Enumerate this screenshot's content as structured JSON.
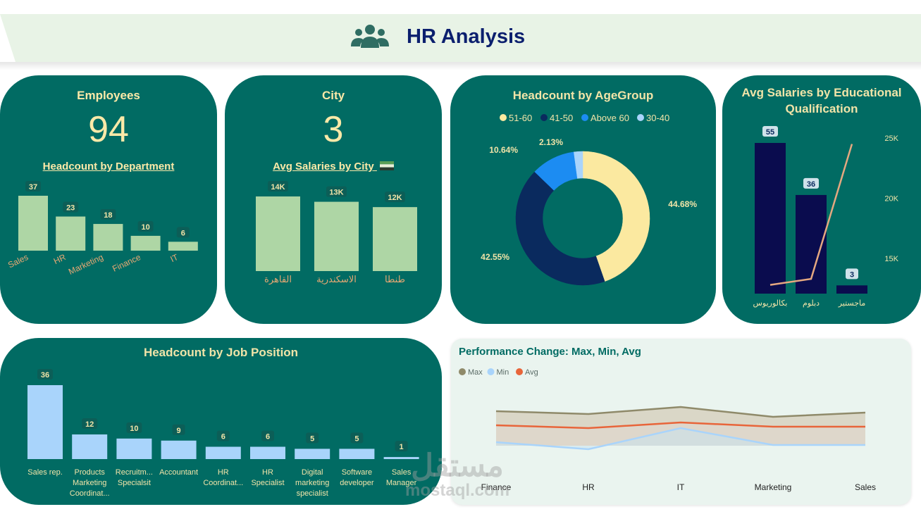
{
  "header": {
    "title": "HR Analysis",
    "icon": "people-group-icon"
  },
  "employees": {
    "title": "Employees",
    "value": "94"
  },
  "city": {
    "title": "City",
    "value": "3"
  },
  "dept_chart": {
    "title": "Headcount by Department",
    "categories": [
      "Sales",
      "HR",
      "Marketing",
      "Finance",
      "IT"
    ],
    "values": [
      37,
      23,
      18,
      10,
      6
    ],
    "labels": [
      "37",
      "23",
      "18",
      "10",
      "6"
    ]
  },
  "city_chart": {
    "title": "Avg Salaries by City",
    "flag_icon": "egypt-flag-icon",
    "categories": [
      "القاهرة",
      "الاسكندرية",
      "طنطا"
    ],
    "values": [
      14000,
      13000,
      12000
    ],
    "labels": [
      "14K",
      "13K",
      "12K"
    ]
  },
  "age_chart": {
    "title": "Headcount by AgeGroup",
    "legend": [
      "51-60",
      "41-50",
      "Above 60",
      "30-40"
    ],
    "values": [
      44.68,
      42.55,
      10.64,
      2.13
    ],
    "labels": [
      "44.68%",
      "42.55%",
      "10.64%",
      "2.13%"
    ],
    "colors": [
      "#fbe9a0",
      "#0a2a5e",
      "#1c8cf2",
      "#a9d4fb"
    ]
  },
  "edu_chart": {
    "title_line1": "Avg Salaries by Educational",
    "title_line2": "Qualification",
    "categories": [
      "بكالوريوس",
      "دبلوم",
      "ماجستير"
    ],
    "counts": [
      55,
      36,
      3
    ],
    "count_labels": [
      "55",
      "36",
      "3"
    ],
    "avg_salary": [
      12800,
      13300,
      24500
    ],
    "y2_ticks": [
      "25K",
      "20K",
      "15K"
    ]
  },
  "job_chart": {
    "title": "Headcount by Job Position",
    "categories": [
      [
        "Sales rep."
      ],
      [
        "Products",
        "Marketing",
        "Coordinat..."
      ],
      [
        "Recruitm...",
        "Specialsit"
      ],
      [
        "Accountant"
      ],
      [
        "HR",
        "Coordinat..."
      ],
      [
        "HR",
        "Specialist"
      ],
      [
        "Digital",
        "marketing",
        "specialist"
      ],
      [
        "Software",
        "developer"
      ],
      [
        "Sales",
        "Manager"
      ]
    ],
    "values": [
      36,
      12,
      10,
      9,
      6,
      6,
      5,
      5,
      1
    ],
    "labels": [
      "36",
      "12",
      "10",
      "9",
      "6",
      "6",
      "5",
      "5",
      "1"
    ]
  },
  "perf_chart": {
    "title": "Performance Change: Max, Min, Avg",
    "legend": [
      "Max",
      "Min",
      "Avg"
    ],
    "colors": [
      "#8f8a6a",
      "#a9d4fb",
      "#e8653a"
    ],
    "categories": [
      "Finance",
      "HR",
      "IT",
      "Marketing",
      "Sales"
    ],
    "max": [
      4.97,
      4.95,
      5.0,
      4.93,
      4.96
    ],
    "min": [
      4.75,
      4.7,
      4.85,
      4.73,
      4.73
    ],
    "avg": [
      4.87,
      4.85,
      4.89,
      4.86,
      4.86
    ]
  },
  "chart_data": [
    {
      "type": "bar",
      "title": "Headcount by Department",
      "categories": [
        "Sales",
        "HR",
        "Marketing",
        "Finance",
        "IT"
      ],
      "values": [
        37,
        23,
        18,
        10,
        6
      ]
    },
    {
      "type": "bar",
      "title": "Avg Salaries by City",
      "categories": [
        "القاهرة",
        "الاسكندرية",
        "طنطا"
      ],
      "values": [
        14000,
        13000,
        12000
      ]
    },
    {
      "type": "pie",
      "title": "Headcount by AgeGroup",
      "categories": [
        "51-60",
        "41-50",
        "Above 60",
        "30-40"
      ],
      "values": [
        44.68,
        42.55,
        10.64,
        2.13
      ]
    },
    {
      "type": "bar",
      "title": "Avg Salaries by Educational Qualification",
      "categories": [
        "بكالوريوس",
        "دبلوم",
        "ماجستير"
      ],
      "series": [
        {
          "values": [
            55,
            36,
            3
          ]
        },
        {
          "values": [
            12800,
            13300,
            24500
          ]
        }
      ]
    },
    {
      "type": "bar",
      "title": "Headcount by Job Position",
      "categories": [
        "Sales rep.",
        "Products Marketing Coordinat...",
        "Recruitm... Specialsit",
        "Accountant",
        "HR Coordinat...",
        "HR Specialist",
        "Digital marketing specialist",
        "Software developer",
        "Sales Manager"
      ],
      "values": [
        36,
        12,
        10,
        9,
        6,
        6,
        5,
        5,
        1
      ]
    },
    {
      "type": "area",
      "title": "Performance Change: Max, Min, Avg",
      "categories": [
        "Finance",
        "HR",
        "IT",
        "Marketing",
        "Sales"
      ],
      "series": [
        {
          "name": "Max",
          "values": [
            4.97,
            4.95,
            5.0,
            4.93,
            4.96
          ]
        },
        {
          "name": "Min",
          "values": [
            4.75,
            4.7,
            4.85,
            4.73,
            4.73
          ]
        },
        {
          "name": "Avg",
          "values": [
            4.87,
            4.85,
            4.89,
            4.86,
            4.86
          ]
        }
      ]
    }
  ],
  "watermark": {
    "line1": "مستقل",
    "line2": "mostaql.com"
  }
}
